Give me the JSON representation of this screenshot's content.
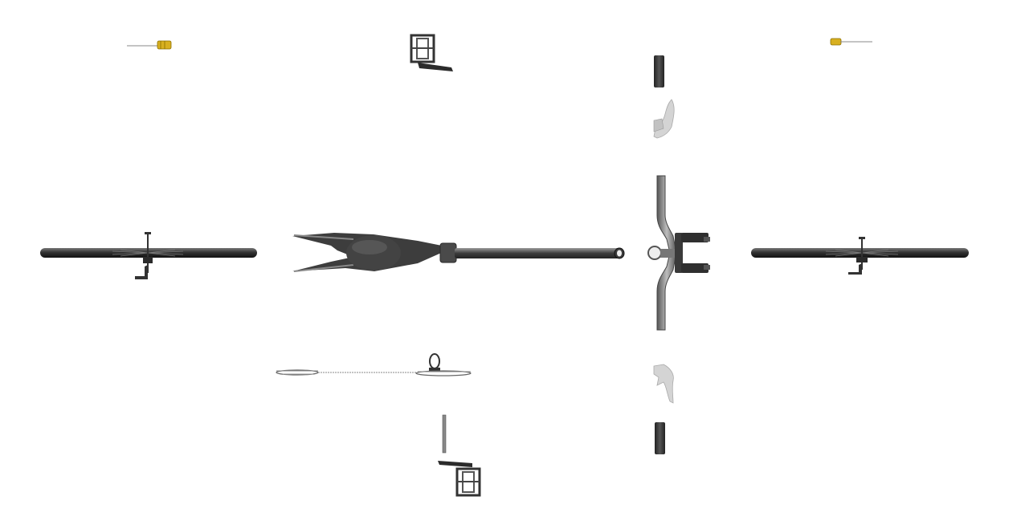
{
  "scene": {
    "background": "#ffffff",
    "colors": {
      "tire": "#3b3b3b",
      "tire_dark": "#1f1f1f",
      "frame": "#4a4a4a",
      "frame_light": "#8a8a8a",
      "handlebar": "#6e6e6e",
      "lever": "#c8c8c8",
      "grip": "#333333",
      "valve_cap": "#d8b020",
      "spoke": "#777777"
    },
    "parts": [
      "valve-front",
      "pedal-left",
      "grip-left",
      "brake-lever-left",
      "valve-rear",
      "front-wheel",
      "frame",
      "handlebar",
      "rear-wheel",
      "chain",
      "seatpost",
      "brake-lever-right",
      "grip-right",
      "pedal-right"
    ]
  }
}
